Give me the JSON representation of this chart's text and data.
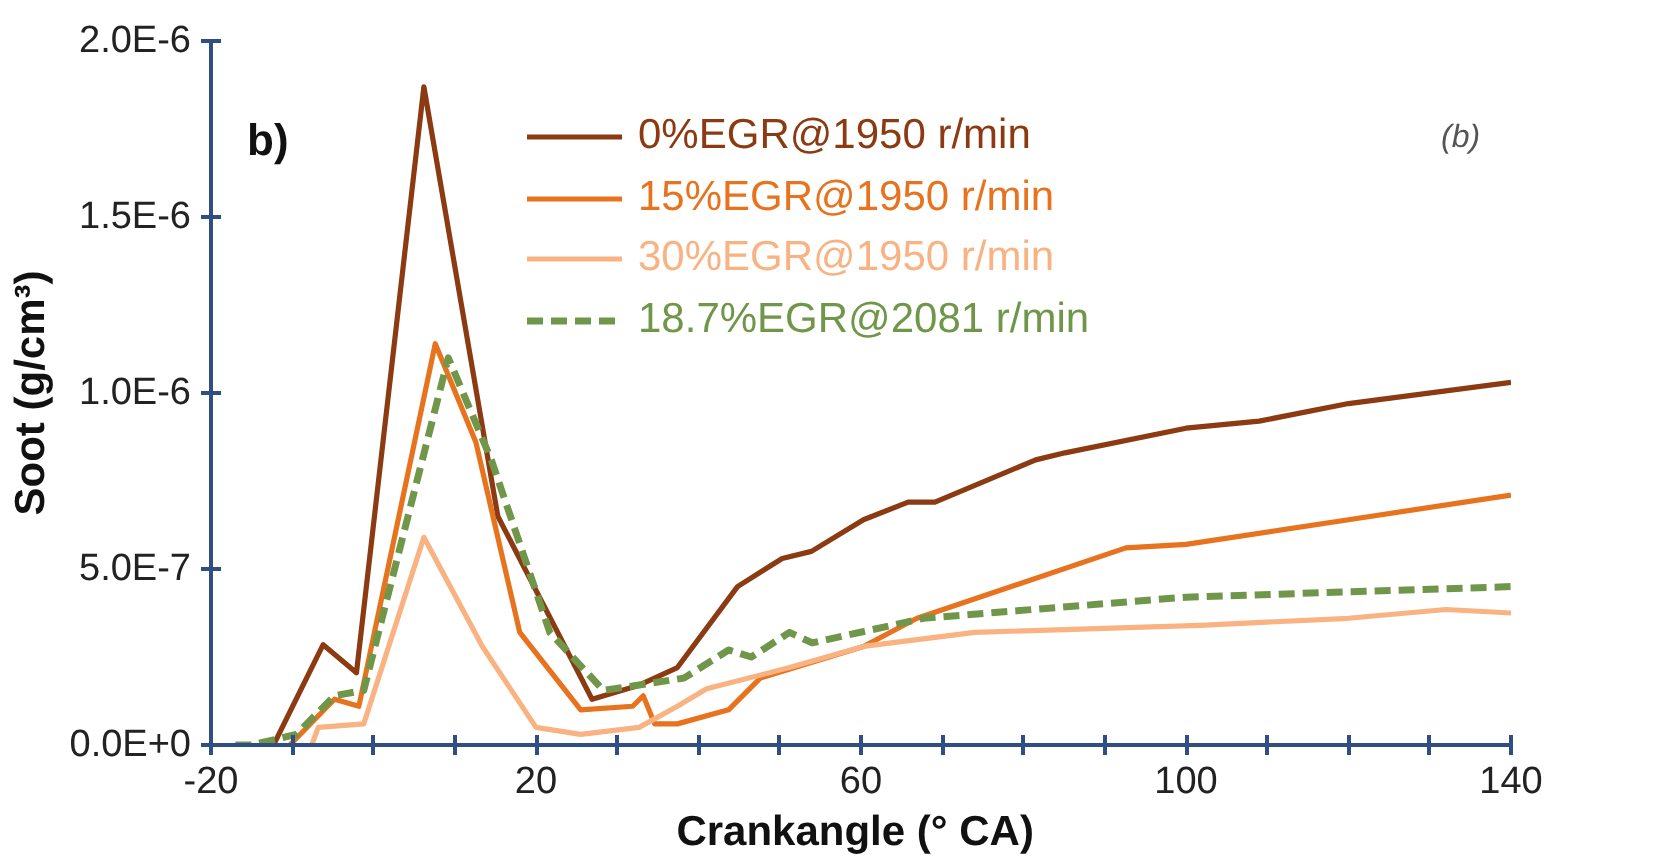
{
  "chart_data": {
    "type": "line",
    "xlabel": "Crankangle (°  CA)",
    "ylabel": "Soot (g/cm³)",
    "xlim": [
      -20,
      140
    ],
    "ylim": [
      0,
      2e-06
    ],
    "xticks": [
      -20,
      {
        "value": -10,
        "label": null
      },
      {
        "value": 0,
        "label": null
      },
      {
        "value": 10,
        "label": null
      },
      20,
      {
        "value": 30,
        "label": null
      },
      {
        "value": 40,
        "label": null
      },
      {
        "value": 50,
        "label": null
      },
      60,
      {
        "value": 70,
        "label": null
      },
      {
        "value": 80,
        "label": null
      },
      {
        "value": 90,
        "label": null
      },
      100,
      {
        "value": 110,
        "label": null
      },
      {
        "value": 120,
        "label": null
      },
      {
        "value": 130,
        "label": null
      },
      140
    ],
    "yticks": [
      {
        "value": 0,
        "label": "0.0E+0"
      },
      {
        "value": 5e-07,
        "label": "5.0E-7"
      },
      {
        "value": 1e-06,
        "label": "1.0E-6"
      },
      {
        "value": 1.5e-06,
        "label": "1.5E-6"
      },
      {
        "value": 2e-06,
        "label": "2.0E-6"
      }
    ],
    "grid": false,
    "legend": "top right",
    "marker": "none",
    "annotations": [
      "b)",
      "(b)"
    ],
    "series": [
      {
        "name": "0%EGR@1950 r/min",
        "color": "#8b3a12",
        "line_style": "solid",
        "x": [
          -12.3,
          -6.2,
          -2.1,
          6.2,
          15.3,
          26.9,
          32.7,
          37.4,
          44.8,
          50.3,
          53.9,
          60.3,
          65.8,
          69.1,
          81.5,
          85.1,
          100,
          109,
          120,
          140
        ],
        "values": [
          0,
          2.85e-07,
          2.05e-07,
          1.87e-06,
          6.5e-07,
          1.3e-07,
          1.7e-07,
          2.2e-07,
          4.5e-07,
          5.3e-07,
          5.5e-07,
          6.4e-07,
          6.9e-07,
          6.9e-07,
          8.1e-07,
          8.3e-07,
          9e-07,
          9.2e-07,
          9.7e-07,
          1.03e-06
        ]
      },
      {
        "name": "15%EGR@1950 r/min",
        "color": "#e8731f",
        "line_style": "solid",
        "x": [
          -10.3,
          -4.8,
          -1.8,
          7.6,
          12.6,
          18,
          25.5,
          31.9,
          33.2,
          34.6,
          37.4,
          43.7,
          47.6,
          60.3,
          66.9,
          92.6,
          100,
          120,
          140
        ],
        "values": [
          0,
          1.3e-07,
          1.1e-07,
          1.14e-06,
          8.6e-07,
          3.2e-07,
          1e-07,
          1.1e-07,
          1.4e-07,
          6e-08,
          6e-08,
          1e-07,
          1.9e-07,
          2.8e-07,
          3.6e-07,
          5.6e-07,
          5.7e-07,
          6.4e-07,
          7.1e-07
        ]
      },
      {
        "name": "30%EGR@1950 r/min",
        "color": "#f9b383",
        "line_style": "solid",
        "x": [
          -7.6,
          -6.8,
          -1.2,
          6.2,
          13.4,
          20,
          25.5,
          32.7,
          37.4,
          41,
          51.2,
          60.3,
          74,
          101.7,
          120,
          132,
          140
        ],
        "values": [
          0,
          5e-08,
          6e-08,
          5.9e-07,
          2.8e-07,
          5e-08,
          3e-08,
          5e-08,
          1.1e-07,
          1.6e-07,
          2.2e-07,
          2.8e-07,
          3.2e-07,
          3.4e-07,
          3.6e-07,
          3.85e-07,
          3.75e-07
        ]
      },
      {
        "name": "18.7%EGR@2081 r/min",
        "color": "#70964a",
        "line_style": "dashed",
        "x": [
          -17,
          -15,
          -9.5,
          -4.8,
          -1.2,
          9.2,
          14.5,
          21.7,
          28.3,
          38.2,
          43.7,
          46.5,
          51.2,
          54,
          67.7,
          100,
          140
        ],
        "values": [
          0,
          0,
          3e-08,
          1.4e-07,
          1.55e-07,
          1.1e-06,
          8.1e-07,
          3.2e-07,
          1.55e-07,
          1.9e-07,
          2.7e-07,
          2.5e-07,
          3.2e-07,
          2.9e-07,
          3.6e-07,
          4.2e-07,
          4.5e-07
        ]
      }
    ]
  }
}
